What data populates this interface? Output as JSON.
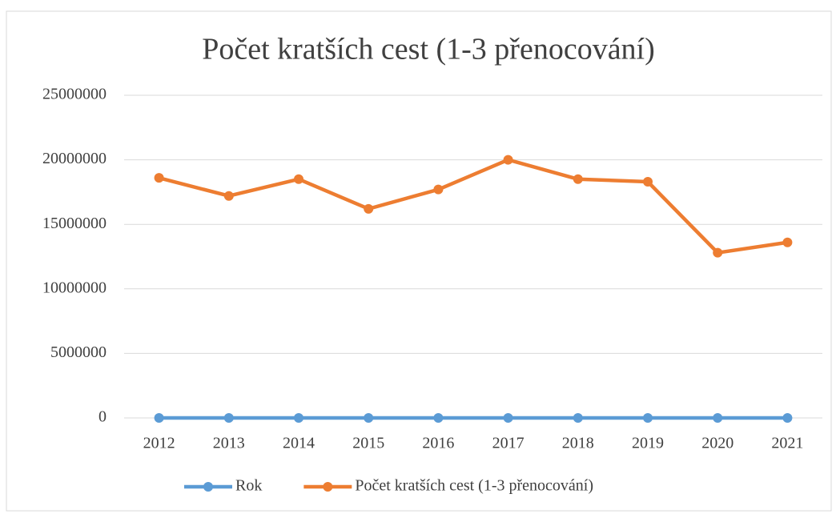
{
  "chart_data": {
    "type": "line",
    "title": "Počet kratších cest (1-3 přenocování)",
    "categories": [
      "2012",
      "2013",
      "2014",
      "2015",
      "2016",
      "2017",
      "2018",
      "2019",
      "2020",
      "2021"
    ],
    "series": [
      {
        "name": "Rok",
        "color": "#5b9bd5",
        "values": [
          2012,
          2013,
          2014,
          2015,
          2016,
          2017,
          2018,
          2019,
          2020,
          2021
        ]
      },
      {
        "name": "Počet kratších cest (1-3 přenocování)",
        "color": "#ed7d31",
        "values": [
          18600000,
          17200000,
          18500000,
          16200000,
          17700000,
          20000000,
          18500000,
          18300000,
          12800000,
          13600000
        ]
      }
    ],
    "ylim": [
      0,
      25000000
    ],
    "yticks": [
      0,
      5000000,
      10000000,
      15000000,
      20000000,
      25000000
    ],
    "grid": true,
    "legend": "bottom"
  }
}
